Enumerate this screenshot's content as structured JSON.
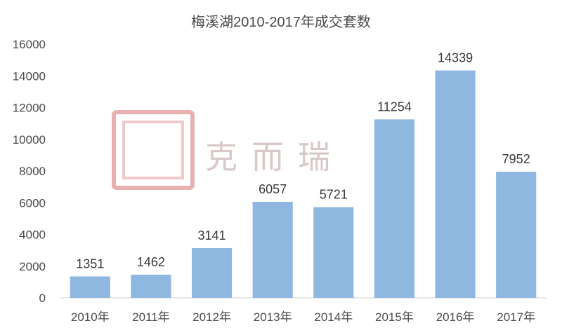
{
  "chart_data": {
    "type": "bar",
    "title": "梅溪湖2010-2017年成交套数",
    "categories": [
      "2010年",
      "2011年",
      "2012年",
      "2013年",
      "2014年",
      "2015年",
      "2016年",
      "2017年"
    ],
    "values": [
      1351,
      1462,
      3141,
      6057,
      5721,
      11254,
      14339,
      7952
    ],
    "ylim": [
      0,
      16000
    ],
    "yticks": [
      0,
      2000,
      4000,
      6000,
      8000,
      10000,
      12000,
      14000,
      16000
    ],
    "xlabel": "",
    "ylabel": "",
    "grid": false,
    "bar_color": "#8fb8e0",
    "data_labels": true
  },
  "watermark": {
    "text": "克而瑞",
    "seal_color": "#e8a0a0",
    "text_color": "#d9c8c8"
  }
}
